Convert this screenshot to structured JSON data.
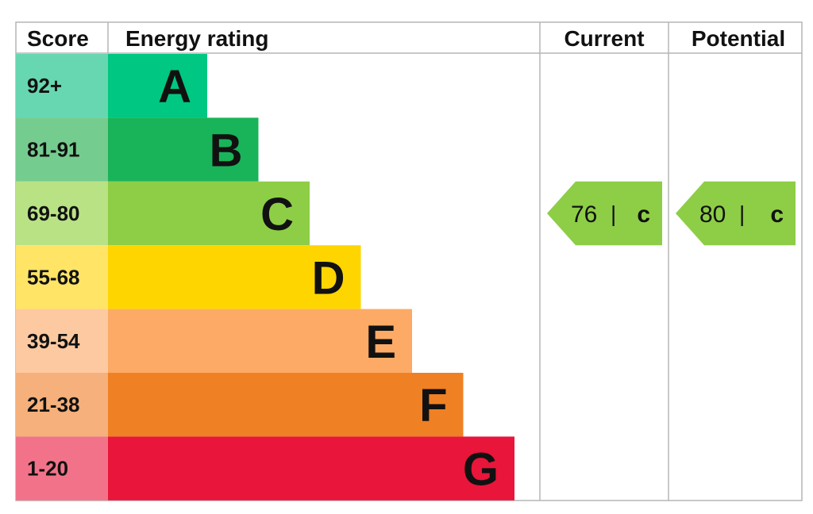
{
  "header": {
    "score": "Score",
    "energy_rating": "Energy rating",
    "current": "Current",
    "potential": "Potential"
  },
  "chart_data": {
    "type": "bar",
    "categories": [
      "A",
      "B",
      "C",
      "D",
      "E",
      "F",
      "G"
    ],
    "score_ranges": [
      "92+",
      "81-91",
      "69-80",
      "55-68",
      "39-54",
      "21-38",
      "1-20"
    ],
    "bar_colors": [
      "#00c781",
      "#19b459",
      "#8dce46",
      "#ffd500",
      "#fcaa65",
      "#ef8023",
      "#e9153b"
    ],
    "score_cell_colors": [
      "#66d7b1",
      "#75cc8f",
      "#b9e285",
      "#ffe466",
      "#fdc9a0",
      "#f5b07b",
      "#f27389"
    ],
    "current": {
      "value": "76",
      "separator": "|",
      "rating": "C",
      "color": "#8dce46"
    },
    "potential": {
      "value": "80",
      "separator": "|",
      "rating": "C",
      "color": "#8dce46"
    }
  }
}
